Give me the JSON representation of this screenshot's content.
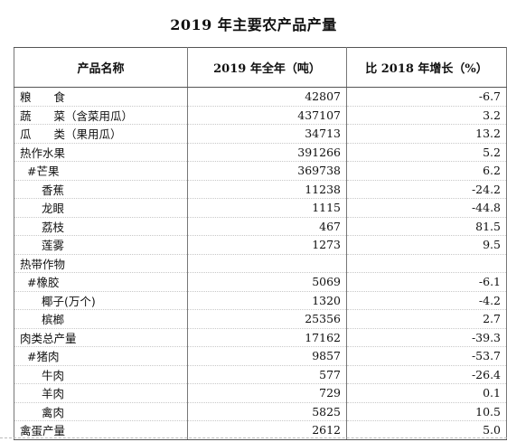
{
  "document": {
    "title": "2019 年主要农产品产量",
    "headers": [
      "产品名称",
      "2019 年全年（吨）",
      "比 2018 年增长（%）"
    ],
    "rows": [
      {
        "name": "粮　　食",
        "value": "42807",
        "growth": "-6.7",
        "indent": 0
      },
      {
        "name": "蔬　　菜（含菜用瓜）",
        "value": "437107",
        "growth": "3.2",
        "indent": 0
      },
      {
        "name": "瓜　　类（果用瓜）",
        "value": "34713",
        "growth": "13.2",
        "indent": 0
      },
      {
        "name": "热作水果",
        "value": "391266",
        "growth": "5.2",
        "indent": 0
      },
      {
        "name": "#芒果",
        "value": "369738",
        "growth": "6.2",
        "indent": 1
      },
      {
        "name": "香蕉",
        "value": "11238",
        "growth": "-24.2",
        "indent": 2
      },
      {
        "name": "龙眼",
        "value": "1115",
        "growth": "-44.8",
        "indent": 2
      },
      {
        "name": "荔枝",
        "value": "467",
        "growth": "81.5",
        "indent": 2
      },
      {
        "name": "莲雾",
        "value": "1273",
        "growth": "9.5",
        "indent": 2
      },
      {
        "name": "热带作物",
        "value": "",
        "growth": "",
        "indent": 0
      },
      {
        "name": "#橡胶",
        "value": "5069",
        "growth": "-6.1",
        "indent": 1
      },
      {
        "name": "椰子(万个)",
        "value": "1320",
        "growth": "-4.2",
        "indent": 2
      },
      {
        "name": "槟榔",
        "value": "25356",
        "growth": "2.7",
        "indent": 2
      },
      {
        "name": "肉类总产量",
        "value": "17162",
        "growth": "-39.3",
        "indent": 0
      },
      {
        "name": "#猪肉",
        "value": "9857",
        "growth": "-53.7",
        "indent": 1
      },
      {
        "name": "牛肉",
        "value": "577",
        "growth": "-26.4",
        "indent": 2
      },
      {
        "name": "羊肉",
        "value": "729",
        "growth": "0.1",
        "indent": 2
      },
      {
        "name": "禽肉",
        "value": "5825",
        "growth": "10.5",
        "indent": 2
      },
      {
        "name": "禽蛋产量",
        "value": "2612",
        "growth": "5.0",
        "indent": 0
      }
    ]
  }
}
